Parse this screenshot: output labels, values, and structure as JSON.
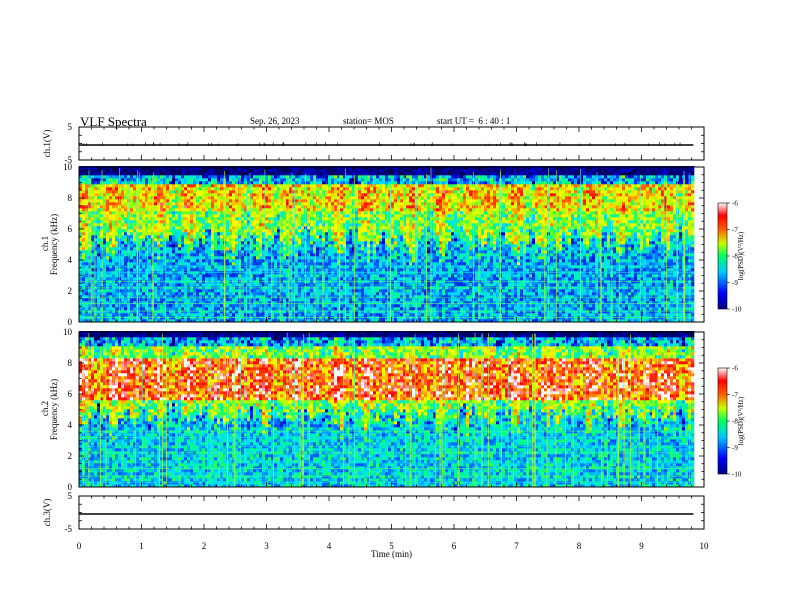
{
  "header": {
    "title": "VLF Spectra",
    "date": "Sep. 26, 2023",
    "station": "station= MOS",
    "start_ut": "start UT =  6 : 40 : 1"
  },
  "chart_data": [
    {
      "type": "line",
      "name": "ch1-waveform",
      "ylabel": "ch.1(V)",
      "yticks": [
        "5",
        "-5"
      ],
      "ylim": [
        -5,
        5
      ],
      "xlim": [
        0,
        10
      ],
      "x": [
        0,
        9.83
      ],
      "values": [
        0,
        0
      ]
    },
    {
      "type": "heatmap",
      "name": "ch1-spectrogram",
      "ylabel_main": "ch.1",
      "ylabel": "Frequency (kHz)",
      "yticks": [
        "0",
        "2",
        "4",
        "6",
        "8",
        "10"
      ],
      "ylim": [
        0,
        10
      ],
      "xlim": [
        0,
        10
      ],
      "data_xmax": 9.83,
      "emission_band_khz": [
        4.5,
        9.3
      ],
      "peak_band_khz": [
        7.0,
        8.8
      ],
      "intensity": "moderate",
      "colorbar": {
        "label": "log(PSD)(V²/Hz)",
        "ticks": [
          "-6",
          "-7",
          "-8",
          "-9",
          "-10"
        ],
        "range": [
          -10,
          -6
        ]
      }
    },
    {
      "type": "heatmap",
      "name": "ch2-spectrogram",
      "ylabel_main": "ch.2",
      "ylabel": "Frequency (kHz)",
      "yticks": [
        "0",
        "2",
        "4",
        "6",
        "8",
        "10"
      ],
      "ylim": [
        0,
        10
      ],
      "xlim": [
        0,
        10
      ],
      "data_xmax": 9.83,
      "emission_band_khz": [
        3.8,
        9.5
      ],
      "peak_band_khz": [
        5.5,
        8.2
      ],
      "intensity": "strong",
      "colorbar": {
        "label": "log(PSD)(V²/Hz)",
        "ticks": [
          "-6",
          "-7",
          "-8",
          "-9",
          "-10"
        ],
        "range": [
          -10,
          -6
        ]
      }
    },
    {
      "type": "line",
      "name": "ch3-waveform",
      "ylabel": "ch.3(V)",
      "yticks": [
        "5",
        "-5"
      ],
      "ylim": [
        -5,
        5
      ],
      "xlim": [
        0,
        10
      ],
      "x": [
        0,
        9.83
      ],
      "values": [
        0,
        0
      ]
    }
  ],
  "xaxis": {
    "label": "Time (min)",
    "ticks": [
      "0",
      "1",
      "2",
      "3",
      "4",
      "5",
      "6",
      "7",
      "8",
      "9",
      "10"
    ]
  },
  "colors": {
    "colormap": [
      "#000040",
      "#0000c8",
      "#0064ff",
      "#00dcff",
      "#00ff80",
      "#aaff00",
      "#ffff00",
      "#ff7800",
      "#ff0000",
      "#ffffff"
    ]
  }
}
